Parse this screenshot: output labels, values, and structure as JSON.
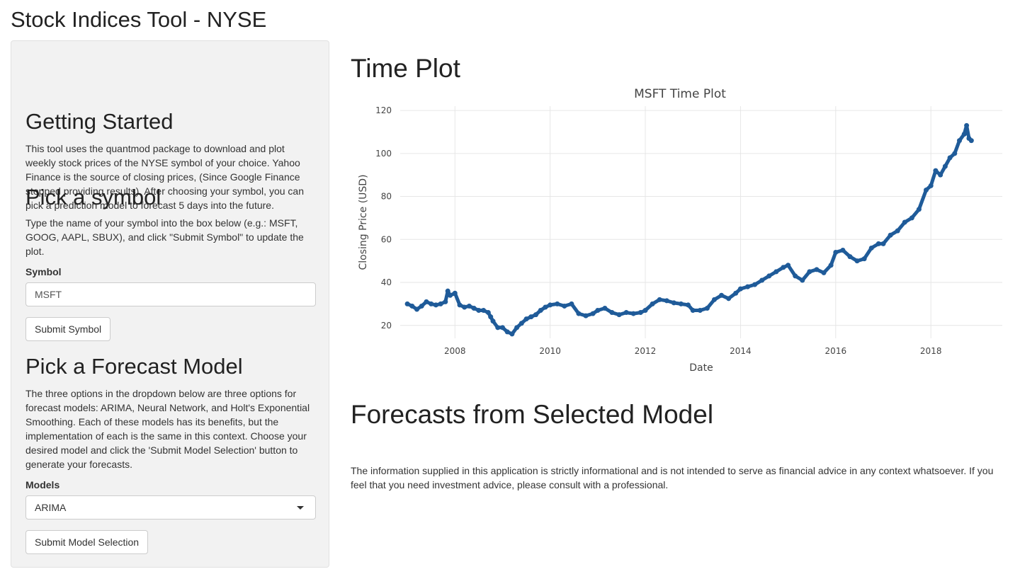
{
  "app": {
    "title": "Stock Indices Tool - NYSE"
  },
  "sidebar": {
    "getting_started": {
      "heading": "Getting Started",
      "text": "This tool uses the quantmod package to download and plot weekly stock prices of the NYSE symbol of your choice. Yahoo Finance is the source of closing prices, (Since Google Finance stopped providing results). After choosing your symbol, you can pick a prediction model to forecast 5 days into the future."
    },
    "pick_symbol": {
      "heading": "Pick a symbol",
      "text": "Type the name of your symbol into the box below (e.g.: MSFT, GOOG, AAPL, SBUX), and click \"Submit Symbol\" to update the plot.",
      "label": "Symbol",
      "value": "MSFT",
      "button": "Submit Symbol"
    },
    "pick_model": {
      "heading": "Pick a Forecast Model",
      "text": "The three options in the dropdown below are three options for forecast models: ARIMA, Neural Network, and Holt's Exponential Smoothing. Each of these models has its benefits, but the implementation of each is the same in this context. Choose your desired model and click the 'Submit Model Selection' button to generate your forecasts.",
      "label": "Models",
      "selected": "ARIMA",
      "button": "Submit Model Selection"
    }
  },
  "main": {
    "time_plot_heading": "Time Plot",
    "forecast_heading": "Forecasts from Selected Model",
    "disclaimer": "The information supplied in this application is strictly informational and is not intended to serve as financial advice in any context whatsoever. If you feel that you need investment advice, please consult with a professional."
  },
  "chart_data": {
    "type": "line",
    "title": "MSFT Time Plot",
    "xlabel": "Date",
    "ylabel": "Closing Price (USD)",
    "xlim": [
      2006.85,
      2019.5
    ],
    "ylim": [
      14,
      122
    ],
    "xticks": [
      2008,
      2010,
      2012,
      2014,
      2016,
      2018
    ],
    "yticks": [
      20,
      40,
      60,
      80,
      100,
      120
    ],
    "grid": true,
    "color": "#1f5b99",
    "series": [
      {
        "x": [
          2007.0,
          2007.1,
          2007.2,
          2007.3,
          2007.4,
          2007.5,
          2007.6,
          2007.7,
          2007.8,
          2007.85,
          2007.9,
          2008.0,
          2008.1,
          2008.2,
          2008.3,
          2008.4,
          2008.5,
          2008.6,
          2008.7,
          2008.75,
          2008.8,
          2008.9,
          2009.0,
          2009.1,
          2009.2,
          2009.3,
          2009.4,
          2009.5,
          2009.6,
          2009.7,
          2009.8,
          2009.9,
          2010.0,
          2010.15,
          2010.3,
          2010.45,
          2010.6,
          2010.75,
          2010.9,
          2011.0,
          2011.15,
          2011.3,
          2011.45,
          2011.6,
          2011.75,
          2011.9,
          2012.0,
          2012.15,
          2012.3,
          2012.45,
          2012.6,
          2012.75,
          2012.9,
          2013.0,
          2013.15,
          2013.3,
          2013.45,
          2013.6,
          2013.75,
          2013.9,
          2014.0,
          2014.15,
          2014.3,
          2014.45,
          2014.6,
          2014.75,
          2014.9,
          2015.0,
          2015.15,
          2015.3,
          2015.45,
          2015.6,
          2015.75,
          2015.9,
          2016.0,
          2016.15,
          2016.3,
          2016.45,
          2016.6,
          2016.75,
          2016.9,
          2017.0,
          2017.15,
          2017.3,
          2017.45,
          2017.6,
          2017.75,
          2017.9,
          2018.0,
          2018.1,
          2018.2,
          2018.3,
          2018.4,
          2018.5,
          2018.6,
          2018.7,
          2018.75,
          2018.8,
          2018.85
        ],
        "y": [
          30,
          29,
          27.5,
          29,
          31,
          30,
          29.5,
          30,
          31,
          36,
          34,
          35,
          29.5,
          28.5,
          29,
          28,
          27,
          27,
          26,
          24,
          22,
          19,
          19,
          17,
          16,
          19,
          21,
          23,
          24,
          25,
          27,
          28.5,
          29.5,
          30,
          29,
          30,
          25.5,
          24.5,
          25.5,
          27,
          28,
          26,
          25,
          26,
          25.5,
          26,
          27,
          30,
          32,
          31.5,
          30.5,
          30,
          29.5,
          27,
          27,
          28,
          32,
          34,
          32.5,
          35,
          37,
          38,
          39,
          41,
          43,
          45,
          47,
          48,
          43,
          41,
          45,
          46,
          44.5,
          48,
          54,
          55,
          52,
          50,
          51,
          56,
          58,
          58,
          62,
          64,
          68,
          70,
          74,
          83,
          85,
          92,
          90,
          94,
          98,
          100,
          106,
          109,
          113,
          107,
          106
        ]
      }
    ]
  }
}
